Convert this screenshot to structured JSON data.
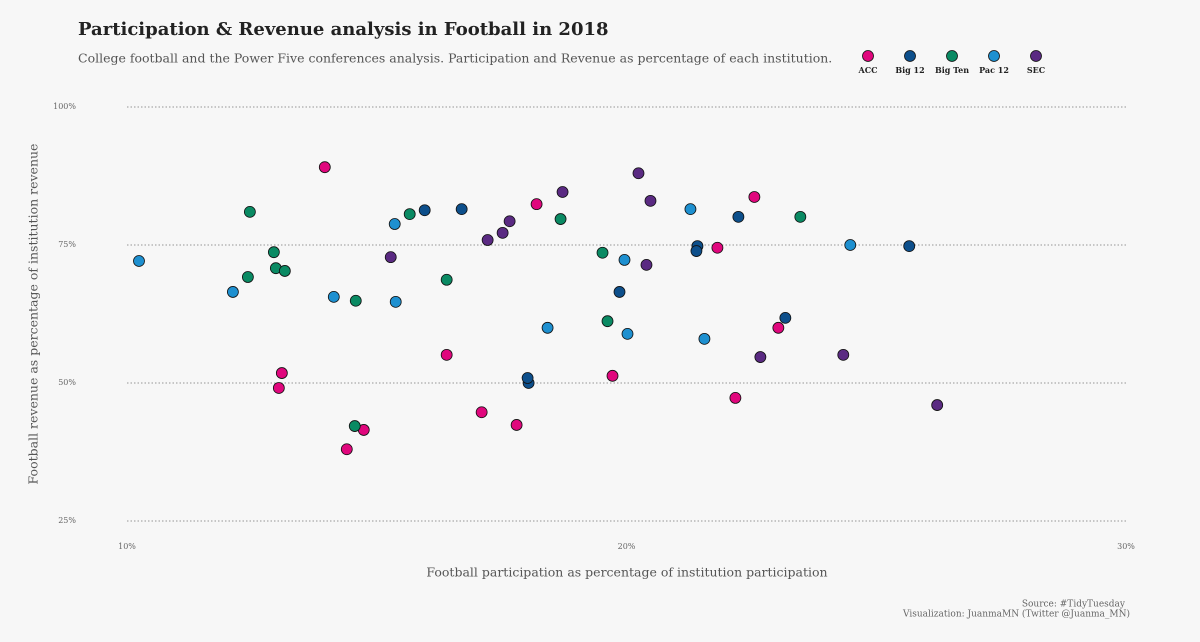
{
  "chart_data": {
    "type": "scatter",
    "title": "Participation & Revenue analysis in Football in 2018",
    "subtitle": "College football and the Power Five conferences analysis. Participation and Revenue as percentage of each institution.",
    "x_label": "Football participation as percentage of institution participation",
    "y_label": "Football revenue as percentage of institution revenue",
    "source": "Source: #TidyTuesday",
    "credit": "Visualization: JuanmaMN (Twitter @Juanma_MN)",
    "xlim": [
      10,
      30
    ],
    "ylim": [
      25,
      100
    ],
    "xticks": [
      {
        "value": 10,
        "label": "10%"
      },
      {
        "value": 20,
        "label": "20%"
      },
      {
        "value": 30,
        "label": "30%"
      }
    ],
    "yticks": [
      {
        "value": 25,
        "label": "25%"
      },
      {
        "value": 50,
        "label": "50%"
      },
      {
        "value": 75,
        "label": "75%"
      },
      {
        "value": 100,
        "label": "100%"
      }
    ],
    "grid": true,
    "legend": "top-right",
    "series": [
      {
        "name": "ACC",
        "color": "#e0077d",
        "x": [
          13.96,
          13.1,
          13.04,
          14.4,
          14.74,
          16.4,
          17.1,
          17.8,
          18.2,
          19.72,
          21.82,
          22.18,
          22.56,
          23.04
        ],
        "values": [
          89.1,
          51.8,
          49.1,
          38.0,
          41.5,
          55.1,
          44.7,
          42.4,
          82.4,
          51.3,
          74.5,
          47.3,
          83.7,
          60.0
        ]
      },
      {
        "name": "Big 12",
        "color": "#0d4f8b",
        "x": [
          15.96,
          16.7,
          18.04,
          18.02,
          19.86,
          21.42,
          21.4,
          22.24,
          23.18,
          25.66
        ],
        "values": [
          81.3,
          81.5,
          50.0,
          50.9,
          66.5,
          74.8,
          73.9,
          80.1,
          61.8,
          74.8
        ]
      },
      {
        "name": "Big Ten",
        "color": "#0a8a63",
        "x": [
          12.46,
          12.42,
          12.94,
          12.98,
          13.16,
          14.58,
          14.56,
          15.66,
          16.4,
          18.68,
          19.52,
          19.62,
          23.48
        ],
        "values": [
          81.0,
          69.2,
          73.7,
          70.8,
          70.3,
          64.9,
          42.2,
          80.6,
          68.7,
          79.7,
          73.6,
          61.2,
          80.1
        ]
      },
      {
        "name": "Pac 12",
        "color": "#1e90d0",
        "x": [
          10.24,
          12.12,
          14.14,
          15.36,
          15.38,
          18.42,
          19.96,
          20.02,
          21.28,
          21.56,
          24.48
        ],
        "values": [
          72.1,
          66.5,
          65.6,
          78.8,
          64.7,
          60.0,
          72.3,
          58.9,
          81.5,
          58.0,
          75.0
        ]
      },
      {
        "name": "SEC",
        "color": "#5a2a82",
        "x": [
          15.28,
          17.22,
          17.52,
          17.66,
          18.72,
          20.24,
          20.48,
          20.4,
          22.68,
          24.34,
          26.22
        ],
        "values": [
          72.8,
          75.9,
          77.2,
          79.3,
          84.6,
          88.0,
          83.0,
          71.4,
          54.7,
          55.1,
          46.0
        ]
      }
    ]
  }
}
